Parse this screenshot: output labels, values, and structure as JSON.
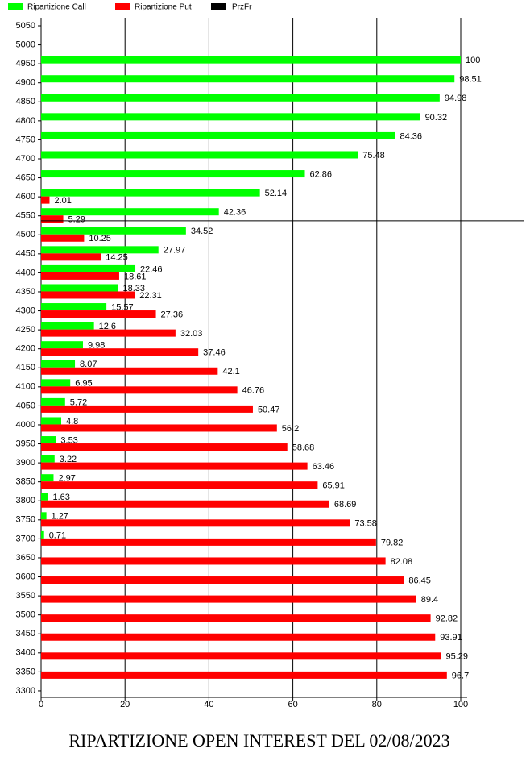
{
  "chart_data": {
    "type": "bar",
    "orientation": "horizontal",
    "title": "RIPARTIZIONE OPEN INTEREST DEL 02/08/2023",
    "categories": [
      "5050",
      "5000",
      "4950",
      "4900",
      "4850",
      "4800",
      "4750",
      "4700",
      "4650",
      "4600",
      "4550",
      "4500",
      "4450",
      "4400",
      "4350",
      "4300",
      "4250",
      "4200",
      "4150",
      "4100",
      "4050",
      "4000",
      "3950",
      "3900",
      "3850",
      "3800",
      "3750",
      "3700",
      "3650",
      "3600",
      "3550",
      "3500",
      "3450",
      "3400",
      "3350",
      "3300"
    ],
    "series": [
      {
        "name": "Ripartizione Call",
        "color": "#00ff00",
        "values": [
          null,
          null,
          100,
          98.51,
          94.98,
          90.32,
          84.36,
          75.48,
          62.86,
          52.14,
          42.36,
          34.52,
          27.97,
          22.46,
          18.33,
          15.57,
          12.6,
          9.98,
          8.07,
          6.95,
          5.72,
          4.8,
          3.53,
          3.22,
          2.97,
          1.63,
          1.27,
          0.71,
          null,
          null,
          null,
          null,
          null,
          null,
          null,
          null
        ]
      },
      {
        "name": "Ripartizione Put",
        "color": "#ff0000",
        "values": [
          null,
          null,
          null,
          null,
          null,
          null,
          null,
          null,
          null,
          2.01,
          5.29,
          10.25,
          14.25,
          18.61,
          22.31,
          27.36,
          32.03,
          37.46,
          42.1,
          46.76,
          50.47,
          56.2,
          58.68,
          63.46,
          65.91,
          68.69,
          73.58,
          79.82,
          82.08,
          86.45,
          89.4,
          92.82,
          93.91,
          95.29,
          96.7,
          null
        ]
      }
    ],
    "reference_line": {
      "name": "PrzFr",
      "color": "#000000",
      "value": 4537
    },
    "xlim": [
      0,
      100
    ],
    "xticks": [
      0,
      20,
      40,
      60,
      80,
      100
    ],
    "grid": true,
    "legend": "top-left"
  }
}
